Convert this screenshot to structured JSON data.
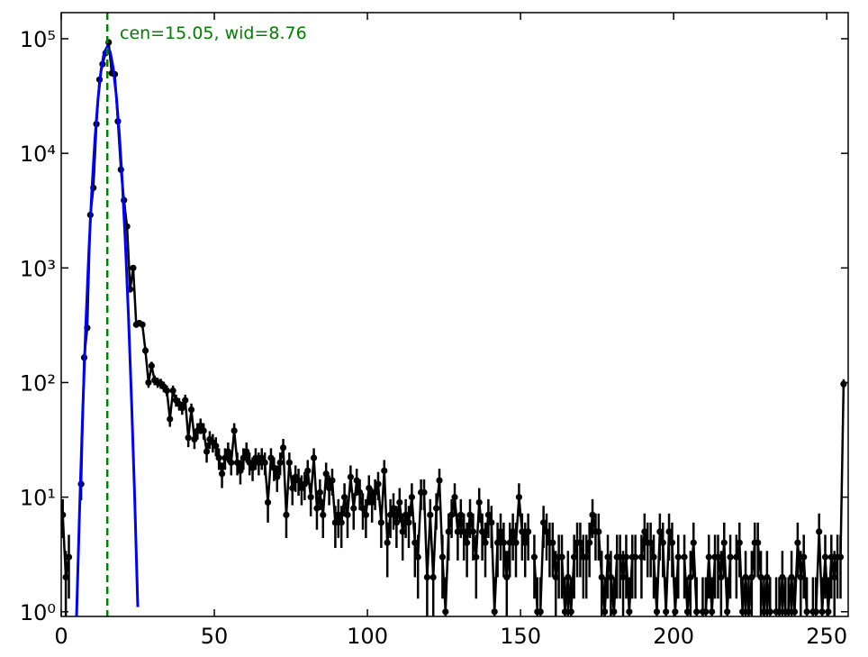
{
  "chart_data": {
    "type": "errorbar",
    "annotation": "cen=15.05, wid=8.76",
    "annotation_color": "#008000",
    "vline_x": 15.05,
    "vline_color": "#008000",
    "xlim": [
      0,
      257
    ],
    "xticks": [
      0,
      50,
      100,
      150,
      200,
      250
    ],
    "ylim": [
      0.91,
      169000
    ],
    "log_y": true,
    "yticks": [
      {
        "value": 1,
        "label": "10⁰"
      },
      {
        "value": 10,
        "label": "10¹"
      },
      {
        "value": 100,
        "label": "10²"
      },
      {
        "value": 1000,
        "label": "10³"
      },
      {
        "value": 10000,
        "label": "10⁴"
      },
      {
        "value": 100000,
        "label": "10⁵"
      }
    ],
    "series": [
      {
        "color": "#000000",
        "x": [
          0.5,
          1.5,
          2.5,
          3.5,
          4.5,
          5.5,
          6.5,
          7.5,
          8.5,
          9.5,
          10.5,
          11.5,
          12.5,
          13.5,
          14.5,
          15.5,
          16.5,
          17.5,
          18.5,
          19.5,
          20.5,
          21.5,
          22.5,
          23.5,
          24.5,
          25.5,
          26.5,
          27.5,
          28.5,
          29.5,
          30.5,
          31.5,
          32.5,
          33.5,
          34.5,
          35.5,
          36.5,
          37.5,
          38.5,
          39.5,
          40.5,
          41.5,
          42.5,
          43.5,
          44.5,
          45.5,
          46.5,
          47.5,
          48.5,
          49.5,
          50.5,
          51.5,
          52.5,
          53.5,
          54.5,
          55.5,
          56.5,
          57.5,
          58.5,
          59.5,
          60.5,
          61.5,
          62.5,
          63.5,
          64.5,
          65.5,
          66.5,
          67.5,
          68.5,
          69.5,
          70.5,
          71.5,
          72.5,
          73.5,
          74.5,
          75.5,
          76.5,
          77.5,
          78.5,
          79.5,
          80.5,
          81.5,
          82.5,
          83.5,
          84.5,
          85.5,
          86.5,
          87.5,
          88.5,
          89.5,
          90.5,
          91.5,
          92.5,
          93.5,
          94.5,
          95.5,
          96.5,
          97.5,
          98.5,
          99.5,
          100.5,
          101.5,
          102.5,
          103.5,
          104.5,
          105.5,
          106.5,
          107.5,
          108.5,
          109.5,
          110.5,
          111.5,
          112.5,
          113.5,
          114.5,
          115.5,
          116.5,
          117.5,
          118.5,
          119.5,
          120.5,
          121.5,
          122.5,
          123.5,
          124.5,
          125.5,
          126.5,
          127.5,
          128.5,
          129.5,
          130.5,
          131.5,
          132.5,
          133.5,
          134.5,
          135.5,
          136.5,
          137.5,
          138.5,
          139.5,
          140.5,
          141.5,
          142.5,
          143.5,
          144.5,
          145.5,
          146.5,
          147.5,
          148.5,
          149.5,
          150.5,
          151.5,
          152.5,
          153.5,
          154.5,
          155.5,
          156.5,
          157.5,
          158.5,
          159.5,
          160.5,
          161.5,
          162.5,
          163.5,
          164.5,
          165.5,
          166.5,
          167.5,
          168.5,
          169.5,
          170.5,
          171.5,
          172.5,
          173.5,
          174.5,
          175.5,
          176.5,
          177.5,
          178.5,
          179.5,
          180.5,
          181.5,
          182.5,
          183.5,
          184.5,
          185.5,
          186.5,
          187.5,
          188.5,
          189.5,
          190.5,
          191.5,
          192.5,
          193.5,
          194.5,
          195.5,
          196.5,
          197.5,
          198.5,
          199.5,
          200.5,
          201.5,
          202.5,
          203.5,
          204.5,
          205.5,
          206.5,
          207.5,
          208.5,
          209.5,
          210.5,
          211.5,
          212.5,
          213.5,
          214.5,
          215.5,
          216.5,
          217.5,
          218.5,
          219.5,
          220.5,
          221.5,
          222.5,
          223.5,
          224.5,
          225.5,
          226.5,
          227.5,
          228.5,
          229.5,
          230.5,
          231.5,
          232.5,
          233.5,
          234.5,
          235.5,
          236.5,
          237.5,
          238.5,
          239.5,
          240.5,
          241.5,
          242.5,
          243.5,
          244.5,
          245.5,
          246.5,
          247.5,
          248.5,
          249.5,
          250.5,
          251.5,
          252.5,
          253.5,
          254.5,
          255.5
        ],
        "values": [
          7,
          2,
          3,
          null,
          null,
          null,
          13,
          165,
          300,
          2900,
          5000,
          18000,
          44000,
          60000,
          75000,
          93000,
          50000,
          49000,
          19000,
          7200,
          3900,
          2300,
          650,
          1000,
          320,
          330,
          320,
          190,
          100,
          140,
          105,
          100,
          98,
          92,
          85,
          48,
          85,
          70,
          65,
          60,
          70,
          33,
          58,
          32,
          38,
          42,
          38,
          25,
          32,
          30,
          28,
          22,
          16,
          22,
          25,
          20,
          38,
          20,
          17,
          22,
          25,
          20,
          18,
          22,
          20,
          22,
          20,
          9,
          22,
          18,
          15,
          20,
          27,
          7,
          20,
          12,
          15,
          14,
          12,
          13,
          17,
          10,
          22,
          8,
          11,
          7,
          16,
          12,
          14,
          6,
          7,
          6,
          10,
          7,
          15,
          8,
          14,
          11,
          8,
          7,
          12,
          9,
          11,
          13,
          6,
          17,
          4,
          7,
          8,
          6,
          9,
          5,
          7,
          6,
          10,
          4,
          3,
          11,
          11,
          2,
          7,
          2,
          8,
          14,
          3,
          1,
          5,
          7,
          10,
          5,
          7,
          5,
          4,
          7,
          5,
          3,
          9,
          5,
          4,
          7,
          6,
          1,
          4,
          5,
          4,
          2,
          4,
          5,
          4,
          10,
          5,
          4,
          5,
          null,
          3,
          1,
          1,
          6,
          5,
          4,
          4,
          2,
          3,
          3,
          1,
          2,
          1,
          3,
          4,
          4,
          3,
          3,
          4,
          7,
          5,
          5,
          2,
          1,
          3,
          2,
          1,
          3,
          3,
          2,
          3,
          1,
          3,
          3,
          null,
          3,
          5,
          4,
          4,
          3,
          1,
          5,
          4,
          1,
          5,
          4,
          1,
          3,
          null,
          3,
          1,
          2,
          4,
          1,
          null,
          1,
          1,
          3,
          1,
          3,
          3,
          2,
          4,
          1,
          3,
          null,
          3,
          4,
          1,
          2,
          1,
          2,
          4,
          4,
          2,
          1,
          2,
          1,
          null,
          1,
          1,
          2,
          1,
          1,
          2,
          1,
          4,
          2,
          3,
          1,
          null,
          1,
          1,
          5,
          1,
          3,
          1,
          3,
          2,
          3,
          3,
          97
        ],
        "errors": [
          2.6,
          1.4,
          1.7,
          null,
          null,
          null,
          3.6,
          12.8,
          17.3,
          54,
          71,
          134,
          210,
          245,
          274,
          305,
          224,
          221,
          138,
          85,
          62,
          48,
          25.5,
          31.6,
          17.9,
          18.2,
          17.9,
          13.8,
          10,
          11.8,
          10.2,
          10,
          9.9,
          9.6,
          9.2,
          6.9,
          9.2,
          8.4,
          8.1,
          7.7,
          8.4,
          5.7,
          7.6,
          5.7,
          6.2,
          6.5,
          6.2,
          5,
          5.7,
          5.5,
          5.3,
          4.7,
          4,
          4.7,
          5,
          4.5,
          6.2,
          4.5,
          4.1,
          4.7,
          5,
          4.5,
          4.2,
          4.7,
          4.5,
          4.7,
          4.5,
          3,
          4.7,
          4.2,
          3.9,
          4.5,
          5.2,
          2.6,
          4.5,
          3.5,
          3.9,
          3.7,
          3.5,
          3.6,
          4.1,
          3.2,
          4.7,
          2.8,
          3.3,
          2.6,
          4,
          3.5,
          3.7,
          2.4,
          2.6,
          2.4,
          3.2,
          2.6,
          3.9,
          2.8,
          3.7,
          3.3,
          2.8,
          2.6,
          3.5,
          3,
          3.3,
          3.6,
          2.4,
          4.1,
          2,
          2.6,
          2.8,
          2.4,
          3,
          2.2,
          2.6,
          2.4,
          3.2,
          2,
          1.7,
          3.3,
          3.3,
          1.4,
          2.6,
          1.4,
          2.8,
          3.7,
          1.7,
          1,
          2.2,
          2.6,
          3.2,
          2.2,
          2.6,
          2.2,
          2,
          2.6,
          2.2,
          1.7,
          3,
          2.2,
          2,
          2.6,
          2.4,
          1,
          2,
          2.2,
          2,
          1.4,
          2,
          2.2,
          2,
          3.2,
          2.2,
          2,
          2.2,
          null,
          1.7,
          1,
          1,
          2.4,
          2.2,
          2,
          2,
          1.4,
          1.7,
          1.7,
          1,
          1.4,
          1,
          1.7,
          2,
          2,
          1.7,
          1.7,
          2,
          2.6,
          2.2,
          2.2,
          1.4,
          1,
          1.7,
          1.4,
          1,
          1.7,
          1.7,
          1.4,
          1.7,
          1,
          1.7,
          1.7,
          null,
          1.7,
          2.2,
          2,
          2,
          1.7,
          1,
          2.2,
          2,
          1,
          2.2,
          2,
          1,
          1.7,
          null,
          1.7,
          1,
          1.4,
          2,
          1,
          null,
          1,
          1,
          1.7,
          1,
          1.7,
          1.7,
          1.4,
          2,
          1,
          1.7,
          null,
          1.7,
          2,
          1,
          1.4,
          1,
          1.4,
          2,
          2,
          1.4,
          1,
          1.4,
          1,
          null,
          1,
          1,
          1.4,
          1,
          1,
          1.4,
          1,
          2,
          1.4,
          1.7,
          1,
          null,
          1,
          1,
          2.2,
          1,
          1.7,
          1,
          1.7,
          1.4,
          1.7,
          1.7,
          9.8
        ]
      },
      {
        "color": "#0000ff",
        "type": "line",
        "x": [
          5,
          6,
          7,
          8,
          9,
          10,
          11,
          12,
          13,
          14,
          15,
          16,
          17,
          18,
          19,
          20,
          21,
          22,
          23,
          24,
          25
        ],
        "values": [
          0.9,
          7.8,
          54,
          302,
          1340,
          4720,
          13200,
          29600,
          52800,
          75000,
          85000,
          76800,
          55200,
          31700,
          14500,
          5270,
          1540,
          355,
          65,
          9.7,
          1.1
        ]
      }
    ]
  }
}
